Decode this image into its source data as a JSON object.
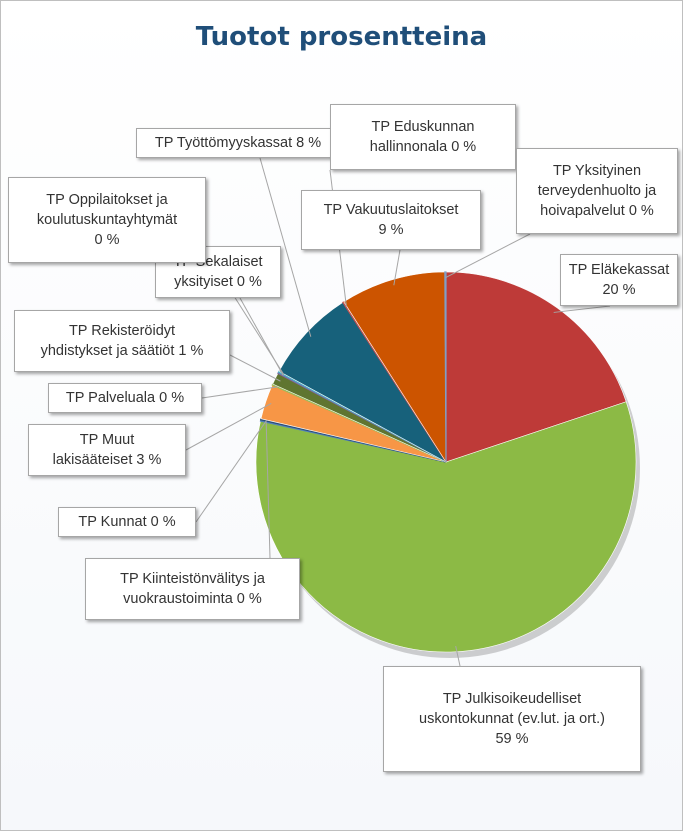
{
  "chart_data": {
    "type": "pie",
    "title": "Tuotot prosentteina",
    "slices": [
      {
        "label": "TP Eläkekassat",
        "display": "TP Eläkekassat\n20 %",
        "value": 20,
        "color": "#be3a38"
      },
      {
        "label": "TP Julkisoikeudelliset uskontokunnat (ev.lut. ja ort.)",
        "display": "TP Julkisoikeudelliset\nuskontokunnat (ev.lut. ja ort.)\n59 %",
        "value": 59,
        "color": "#8cba45"
      },
      {
        "label": "TP Kiinteistönvälitys ja vuokraustoiminta",
        "display": "TP Kiinteistönvälitys ja\nvuokraustoiminta 0 %",
        "value": 0,
        "color": "#4f81bd"
      },
      {
        "label": "TP Kunnat",
        "display": "TP Kunnat 0 %",
        "value": 0,
        "color": "#2c4d75"
      },
      {
        "label": "TP Muut lakisääteiset",
        "display": "TP Muut\nlakisääteiset 3 %",
        "value": 3,
        "color": "#f79646"
      },
      {
        "label": "TP Palveluala",
        "display": "TP Palveluala 0 %",
        "value": 0,
        "color": "#9bbb59"
      },
      {
        "label": "TP Rekisteröidyt yhdistykset ja säätiöt",
        "display": "TP Rekisteröidyt\nyhdistykset ja säätiöt 1 %",
        "value": 1,
        "color": "#5f7530"
      },
      {
        "label": "TP Sekalaiset yksityiset",
        "display": "TP Sekalaiset\nyksityiset 0 %",
        "value": 0,
        "color": "#8064a2"
      },
      {
        "label": "TP Oppilaitokset ja koulutuskuntayhtymät",
        "display": "TP Oppilaitokset ja\nkoulutuskuntayhtymät\n0 %",
        "value": 0,
        "color": "#4bacc6"
      },
      {
        "label": "TP Työttömyyskassat",
        "display": "TP Työttömyyskassat 8 %",
        "value": 8,
        "color": "#17617b"
      },
      {
        "label": "TP Eduskunnan hallinnonala",
        "display": "TP Eduskunnan\nhallinnonala 0 %",
        "value": 0,
        "color": "#c0504d"
      },
      {
        "label": "TP Vakuutuslaitokset",
        "display": "TP Vakuutuslaitokset\n9 %",
        "value": 9,
        "color": "#cc5400"
      },
      {
        "label": "TP Yksityinen terveydenhuolto ja hoivapalvelut",
        "display": "TP Yksityinen\nterveydenhuolto ja\nhoivapalvelut 0 %",
        "value": 0,
        "color": "#7f9fc7"
      }
    ],
    "legend": "none"
  }
}
